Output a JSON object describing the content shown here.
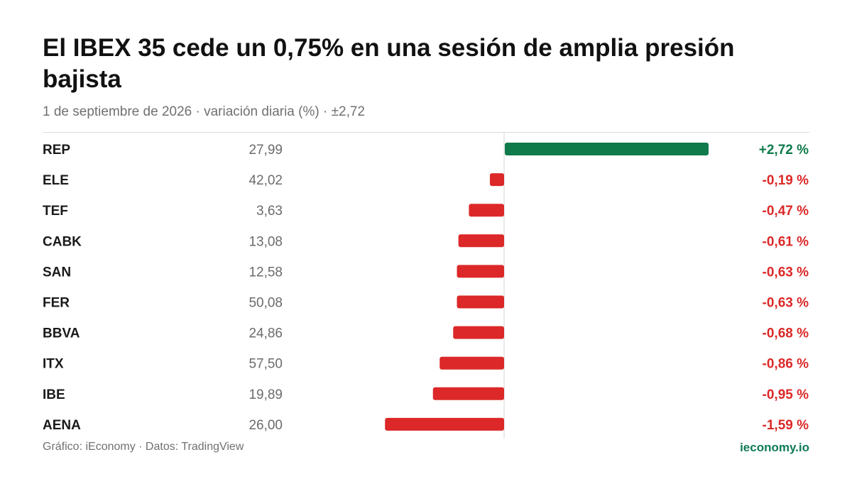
{
  "header": {
    "title": "El IBEX 35 cede un 0,75% en una sesión de amplia presión bajista",
    "subtitle": "1 de septiembre de 2026 · variación diaria (%) · ±2,72"
  },
  "footer": {
    "source": "Gráfico: iEconomy · Datos: TradingView",
    "brand": "ieconomy.io"
  },
  "colors": {
    "positive": "#0f7a4a",
    "negative": "#dc2828",
    "text_dark": "#1a1a1a",
    "text_muted": "#6b6b6b"
  },
  "chart_data": {
    "type": "bar",
    "orientation": "horizontal",
    "value_unit": "%",
    "xlim": [
      -2.72,
      2.72
    ],
    "grid": false,
    "rows": [
      {
        "ticker": "REP",
        "price": "27,99",
        "change": 2.72,
        "label": "+2,72 %"
      },
      {
        "ticker": "ELE",
        "price": "42,02",
        "change": -0.19,
        "label": "-0,19 %"
      },
      {
        "ticker": "TEF",
        "price": "3,63",
        "change": -0.47,
        "label": "-0,47 %"
      },
      {
        "ticker": "CABK",
        "price": "13,08",
        "change": -0.61,
        "label": "-0,61 %"
      },
      {
        "ticker": "SAN",
        "price": "12,58",
        "change": -0.63,
        "label": "-0,63 %"
      },
      {
        "ticker": "FER",
        "price": "50,08",
        "change": -0.63,
        "label": "-0,63 %"
      },
      {
        "ticker": "BBVA",
        "price": "24,86",
        "change": -0.68,
        "label": "-0,68 %"
      },
      {
        "ticker": "ITX",
        "price": "57,50",
        "change": -0.86,
        "label": "-0,86 %"
      },
      {
        "ticker": "IBE",
        "price": "19,89",
        "change": -0.95,
        "label": "-0,95 %"
      },
      {
        "ticker": "AENA",
        "price": "26,00",
        "change": -1.59,
        "label": "-1,59 %"
      }
    ]
  }
}
